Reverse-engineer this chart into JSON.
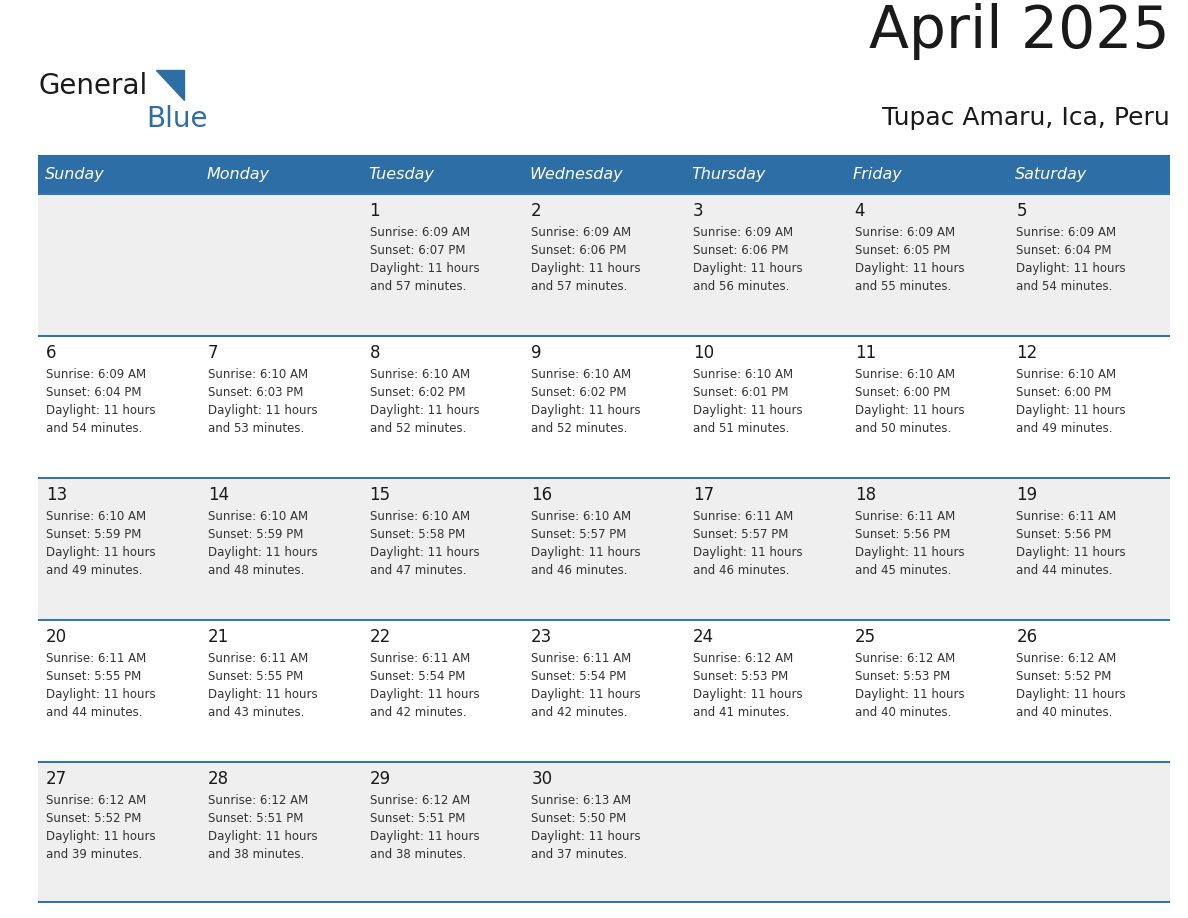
{
  "title": "April 2025",
  "subtitle": "Tupac Amaru, Ica, Peru",
  "header_bg": "#2E6EA6",
  "header_text_color": "#FFFFFF",
  "days_of_week": [
    "Sunday",
    "Monday",
    "Tuesday",
    "Wednesday",
    "Thursday",
    "Friday",
    "Saturday"
  ],
  "row_bg_even": "#EFEFEF",
  "row_bg_odd": "#FFFFFF",
  "cell_border_color": "#2E75B6",
  "day_num_color": "#1a1a1a",
  "info_text_color": "#333333",
  "calendar_data": [
    [
      {
        "day": "",
        "info": ""
      },
      {
        "day": "",
        "info": ""
      },
      {
        "day": "1",
        "info": "Sunrise: 6:09 AM\nSunset: 6:07 PM\nDaylight: 11 hours\nand 57 minutes."
      },
      {
        "day": "2",
        "info": "Sunrise: 6:09 AM\nSunset: 6:06 PM\nDaylight: 11 hours\nand 57 minutes."
      },
      {
        "day": "3",
        "info": "Sunrise: 6:09 AM\nSunset: 6:06 PM\nDaylight: 11 hours\nand 56 minutes."
      },
      {
        "day": "4",
        "info": "Sunrise: 6:09 AM\nSunset: 6:05 PM\nDaylight: 11 hours\nand 55 minutes."
      },
      {
        "day": "5",
        "info": "Sunrise: 6:09 AM\nSunset: 6:04 PM\nDaylight: 11 hours\nand 54 minutes."
      }
    ],
    [
      {
        "day": "6",
        "info": "Sunrise: 6:09 AM\nSunset: 6:04 PM\nDaylight: 11 hours\nand 54 minutes."
      },
      {
        "day": "7",
        "info": "Sunrise: 6:10 AM\nSunset: 6:03 PM\nDaylight: 11 hours\nand 53 minutes."
      },
      {
        "day": "8",
        "info": "Sunrise: 6:10 AM\nSunset: 6:02 PM\nDaylight: 11 hours\nand 52 minutes."
      },
      {
        "day": "9",
        "info": "Sunrise: 6:10 AM\nSunset: 6:02 PM\nDaylight: 11 hours\nand 52 minutes."
      },
      {
        "day": "10",
        "info": "Sunrise: 6:10 AM\nSunset: 6:01 PM\nDaylight: 11 hours\nand 51 minutes."
      },
      {
        "day": "11",
        "info": "Sunrise: 6:10 AM\nSunset: 6:00 PM\nDaylight: 11 hours\nand 50 minutes."
      },
      {
        "day": "12",
        "info": "Sunrise: 6:10 AM\nSunset: 6:00 PM\nDaylight: 11 hours\nand 49 minutes."
      }
    ],
    [
      {
        "day": "13",
        "info": "Sunrise: 6:10 AM\nSunset: 5:59 PM\nDaylight: 11 hours\nand 49 minutes."
      },
      {
        "day": "14",
        "info": "Sunrise: 6:10 AM\nSunset: 5:59 PM\nDaylight: 11 hours\nand 48 minutes."
      },
      {
        "day": "15",
        "info": "Sunrise: 6:10 AM\nSunset: 5:58 PM\nDaylight: 11 hours\nand 47 minutes."
      },
      {
        "day": "16",
        "info": "Sunrise: 6:10 AM\nSunset: 5:57 PM\nDaylight: 11 hours\nand 46 minutes."
      },
      {
        "day": "17",
        "info": "Sunrise: 6:11 AM\nSunset: 5:57 PM\nDaylight: 11 hours\nand 46 minutes."
      },
      {
        "day": "18",
        "info": "Sunrise: 6:11 AM\nSunset: 5:56 PM\nDaylight: 11 hours\nand 45 minutes."
      },
      {
        "day": "19",
        "info": "Sunrise: 6:11 AM\nSunset: 5:56 PM\nDaylight: 11 hours\nand 44 minutes."
      }
    ],
    [
      {
        "day": "20",
        "info": "Sunrise: 6:11 AM\nSunset: 5:55 PM\nDaylight: 11 hours\nand 44 minutes."
      },
      {
        "day": "21",
        "info": "Sunrise: 6:11 AM\nSunset: 5:55 PM\nDaylight: 11 hours\nand 43 minutes."
      },
      {
        "day": "22",
        "info": "Sunrise: 6:11 AM\nSunset: 5:54 PM\nDaylight: 11 hours\nand 42 minutes."
      },
      {
        "day": "23",
        "info": "Sunrise: 6:11 AM\nSunset: 5:54 PM\nDaylight: 11 hours\nand 42 minutes."
      },
      {
        "day": "24",
        "info": "Sunrise: 6:12 AM\nSunset: 5:53 PM\nDaylight: 11 hours\nand 41 minutes."
      },
      {
        "day": "25",
        "info": "Sunrise: 6:12 AM\nSunset: 5:53 PM\nDaylight: 11 hours\nand 40 minutes."
      },
      {
        "day": "26",
        "info": "Sunrise: 6:12 AM\nSunset: 5:52 PM\nDaylight: 11 hours\nand 40 minutes."
      }
    ],
    [
      {
        "day": "27",
        "info": "Sunrise: 6:12 AM\nSunset: 5:52 PM\nDaylight: 11 hours\nand 39 minutes."
      },
      {
        "day": "28",
        "info": "Sunrise: 6:12 AM\nSunset: 5:51 PM\nDaylight: 11 hours\nand 38 minutes."
      },
      {
        "day": "29",
        "info": "Sunrise: 6:12 AM\nSunset: 5:51 PM\nDaylight: 11 hours\nand 38 minutes."
      },
      {
        "day": "30",
        "info": "Sunrise: 6:13 AM\nSunset: 5:50 PM\nDaylight: 11 hours\nand 37 minutes."
      },
      {
        "day": "",
        "info": ""
      },
      {
        "day": "",
        "info": ""
      },
      {
        "day": "",
        "info": ""
      }
    ]
  ],
  "logo_general_color": "#1a1a1a",
  "logo_blue_color": "#2E6EA6",
  "title_color": "#1a1a1a",
  "subtitle_color": "#1a1a1a",
  "fig_width": 11.88,
  "fig_height": 9.18,
  "dpi": 100
}
